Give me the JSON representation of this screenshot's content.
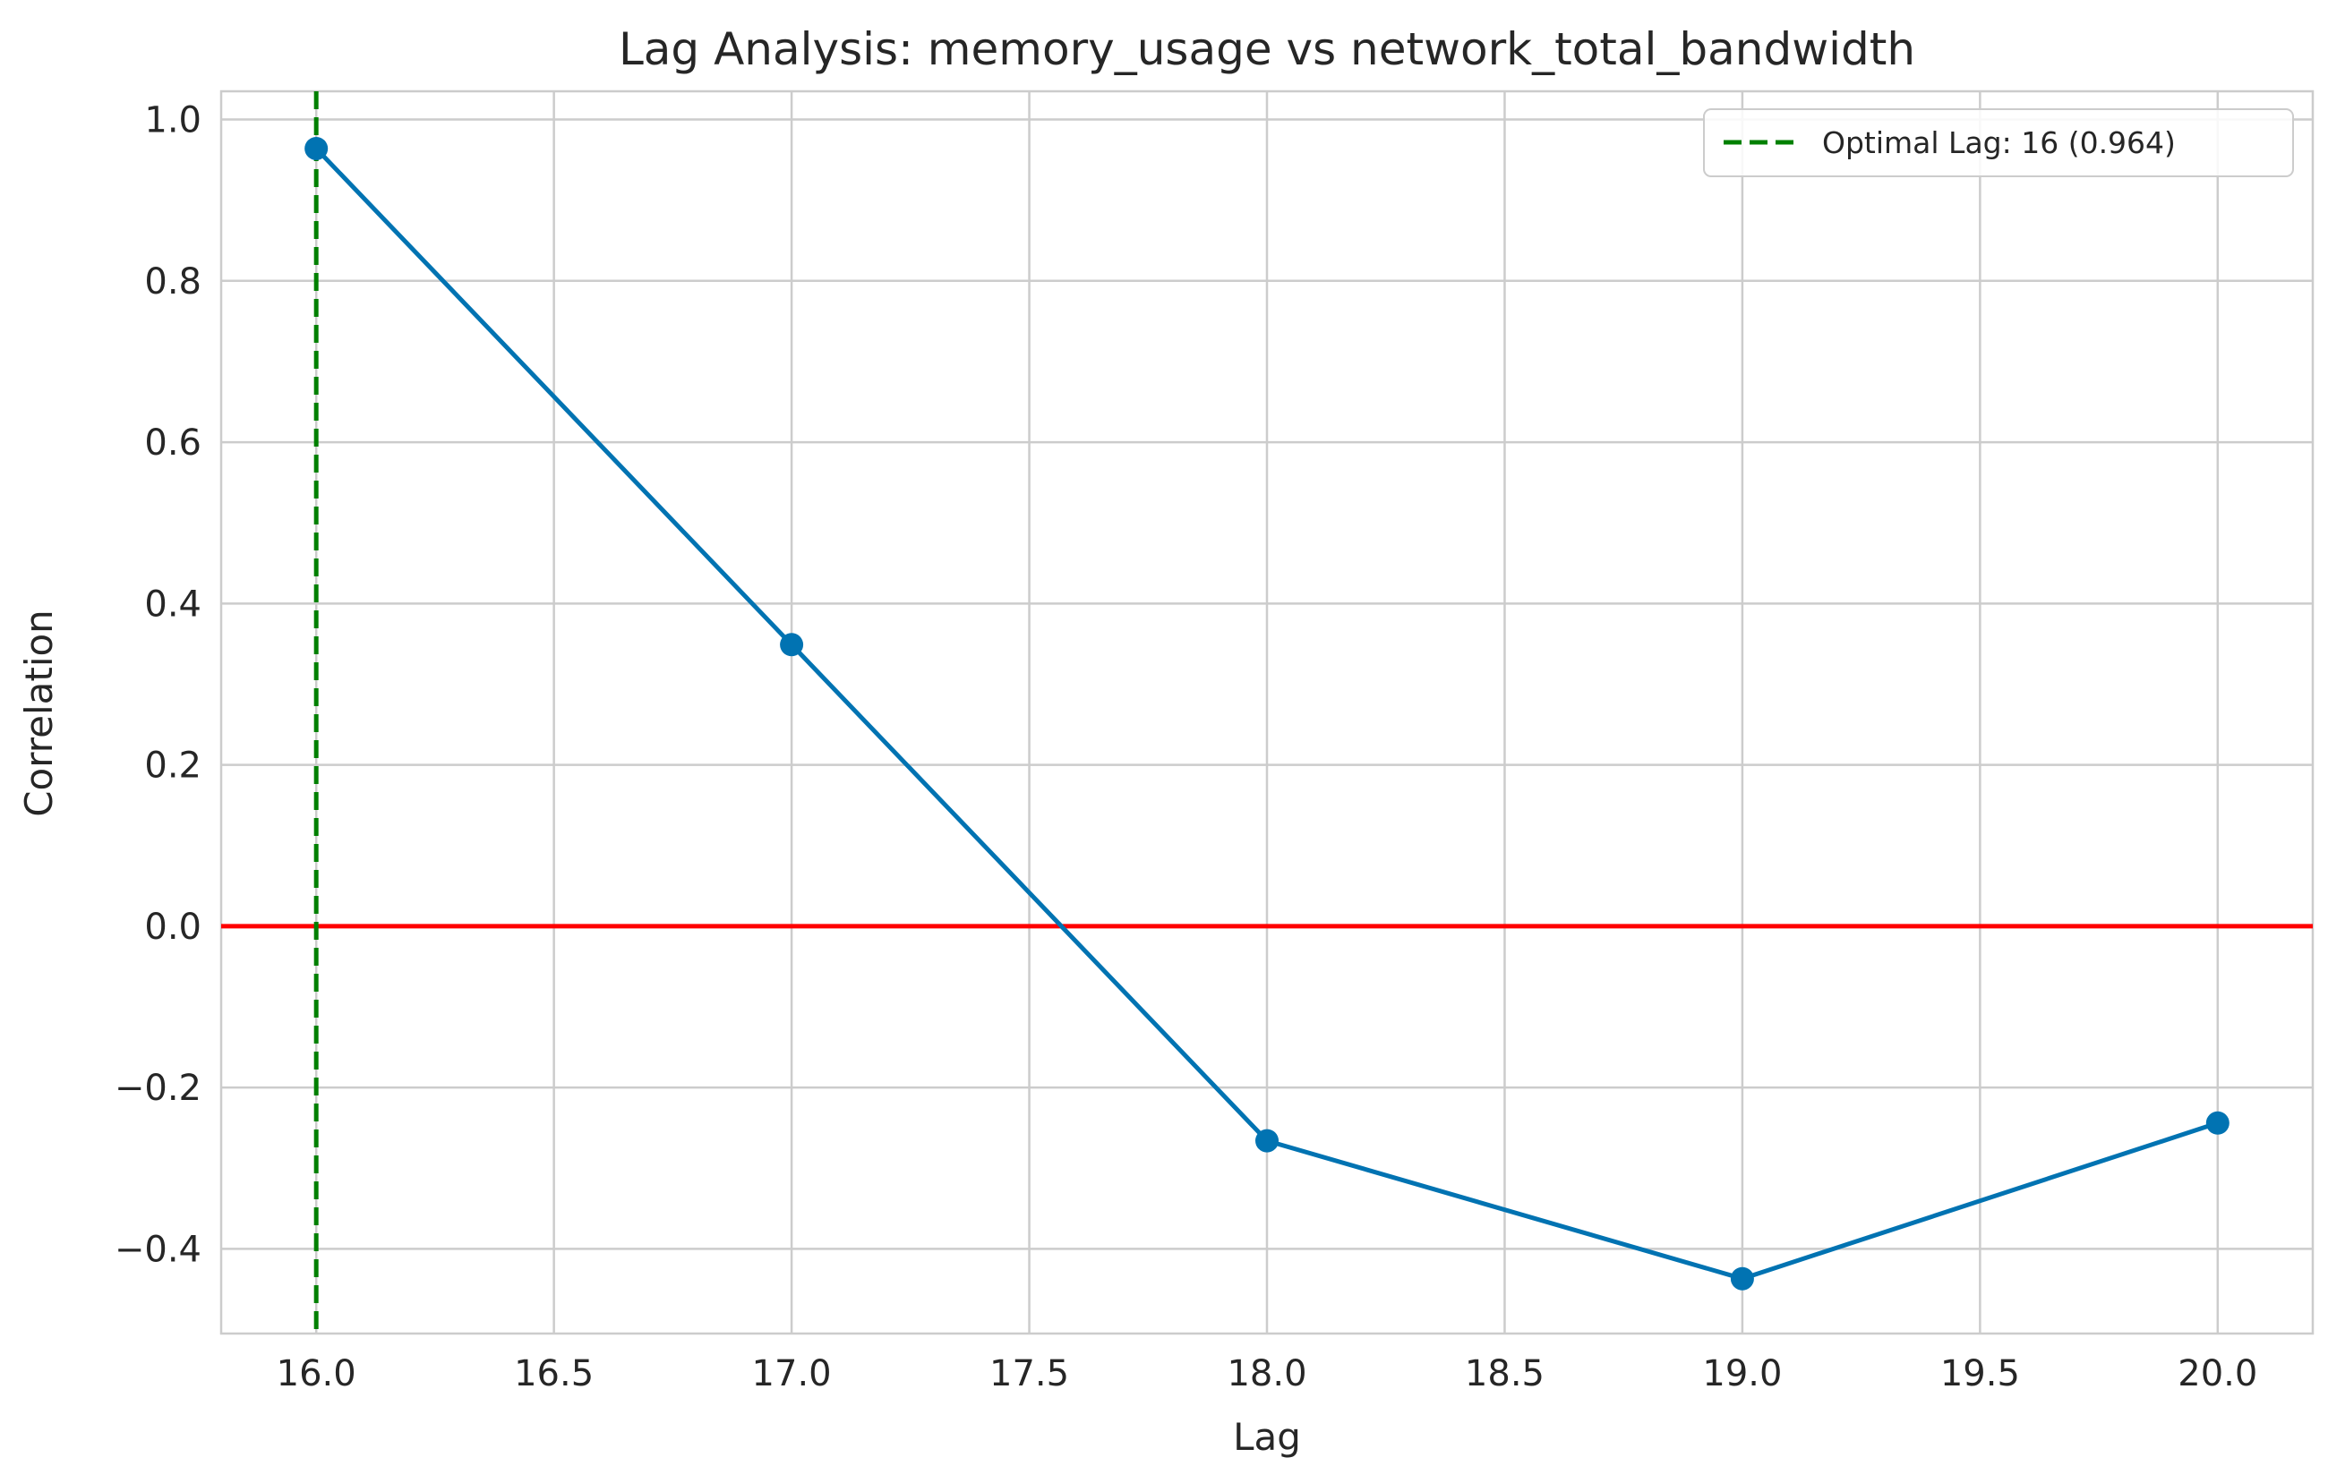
{
  "chart_data": {
    "type": "line",
    "title": "Lag Analysis: memory_usage vs network_total_bandwidth",
    "xlabel": "Lag",
    "ylabel": "Correlation",
    "xlim": [
      15.8,
      20.2
    ],
    "ylim": [
      -0.505,
      1.035
    ],
    "grid": true,
    "x_ticks": [
      16.0,
      16.5,
      17.0,
      17.5,
      18.0,
      18.5,
      19.0,
      19.5,
      20.0
    ],
    "x_tick_labels": [
      "16.0",
      "16.5",
      "17.0",
      "17.5",
      "18.0",
      "18.5",
      "19.0",
      "19.5",
      "20.0"
    ],
    "y_ticks": [
      -0.4,
      -0.2,
      0.0,
      0.2,
      0.4,
      0.6,
      0.8,
      1.0
    ],
    "y_tick_labels": [
      "−0.4",
      "−0.2",
      "0.0",
      "0.2",
      "0.4",
      "0.6",
      "0.8",
      "1.0"
    ],
    "series": [
      {
        "name": "correlation",
        "color": "#0173b2",
        "x": [
          16,
          17,
          18,
          19,
          20
        ],
        "values": [
          0.964,
          0.349,
          -0.266,
          -0.437,
          -0.244
        ]
      }
    ],
    "reference_lines": [
      {
        "orientation": "horizontal",
        "value": 0.0,
        "color": "#ff0000",
        "style": "solid"
      },
      {
        "orientation": "vertical",
        "value": 16,
        "color": "#008000",
        "style": "dashed",
        "label": "Optimal Lag: 16 (0.964)"
      }
    ],
    "legend": {
      "position": "top-right",
      "entries": [
        "Optimal Lag: 16 (0.964)"
      ]
    }
  }
}
